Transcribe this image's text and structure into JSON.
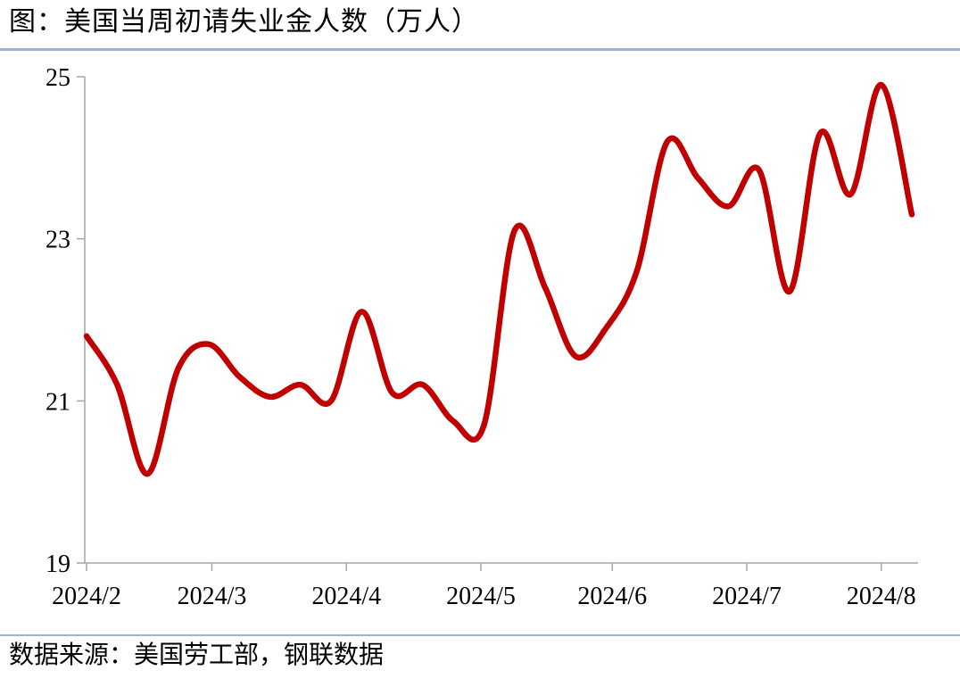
{
  "title": "图：美国当周初请失业金人数（万人）",
  "source": "数据来源：美国劳工部，钢联数据",
  "theme": {
    "divider_color": "#9fb2d1",
    "text_color": "#000000"
  },
  "chart_data": {
    "type": "line",
    "title": "图：美国当周初请失业金人数（万人）",
    "xlabel": "",
    "ylabel": "万人",
    "ylim": [
      19,
      25
    ],
    "y_ticks": [
      25,
      23,
      21,
      19
    ],
    "x_tick_labels": [
      "2024/2",
      "2024/3",
      "2024/4",
      "2024/5",
      "2024/6",
      "2024/7",
      "2024/8"
    ],
    "x_tick_weeks": [
      0,
      4.1,
      8.5,
      12.9,
      17.2,
      21.6,
      26.0
    ],
    "grid": false,
    "legend_position": "none",
    "line_color": "#c00000",
    "line_width": 6.5,
    "axis_color": "#a6a6a6",
    "smooth": true,
    "series": [
      {
        "name": "美国当周初请失业金人数（万人）",
        "x_unit": "week_index",
        "x": [
          0,
          1,
          2,
          3,
          4,
          5,
          6,
          7,
          8,
          9,
          10,
          11,
          12,
          13,
          14,
          15,
          16,
          17,
          18,
          19,
          20,
          21,
          22,
          23,
          24,
          25,
          26,
          27
        ],
        "values": [
          21.8,
          21.2,
          20.1,
          21.4,
          21.7,
          21.3,
          21.05,
          21.2,
          21.0,
          22.1,
          21.1,
          21.2,
          20.75,
          20.7,
          23.1,
          22.4,
          21.55,
          21.9,
          22.6,
          24.2,
          23.75,
          23.4,
          23.85,
          22.35,
          24.3,
          23.55,
          24.9,
          23.3
        ]
      }
    ]
  }
}
